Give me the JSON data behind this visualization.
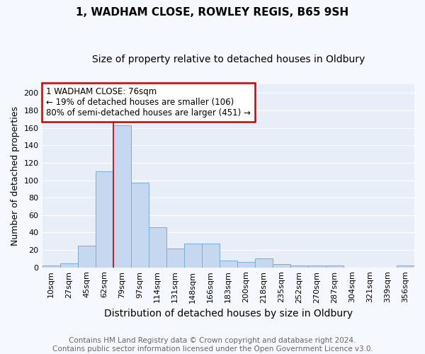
{
  "title1": "1, WADHAM CLOSE, ROWLEY REGIS, B65 9SH",
  "title2": "Size of property relative to detached houses in Oldbury",
  "xlabel": "Distribution of detached houses by size in Oldbury",
  "ylabel": "Number of detached properties",
  "footer": "Contains HM Land Registry data © Crown copyright and database right 2024.\nContains public sector information licensed under the Open Government Licence v3.0.",
  "bar_labels": [
    "10sqm",
    "27sqm",
    "45sqm",
    "62sqm",
    "79sqm",
    "97sqm",
    "114sqm",
    "131sqm",
    "148sqm",
    "166sqm",
    "183sqm",
    "200sqm",
    "218sqm",
    "235sqm",
    "252sqm",
    "270sqm",
    "287sqm",
    "304sqm",
    "321sqm",
    "339sqm",
    "356sqm"
  ],
  "bar_values": [
    2,
    5,
    25,
    110,
    163,
    97,
    46,
    22,
    27,
    27,
    8,
    6,
    10,
    4,
    2,
    2,
    2,
    0,
    0,
    0,
    2
  ],
  "bar_color": "#c5d8f0",
  "bar_edge_color": "#7aadd4",
  "red_line_x": 3.5,
  "annotation_text": "1 WADHAM CLOSE: 76sqm\n← 19% of detached houses are smaller (106)\n80% of semi-detached houses are larger (451) →",
  "annotation_box_color": "#ffffff",
  "annotation_box_edge": "#cc0000",
  "ylim": [
    0,
    210
  ],
  "yticks": [
    0,
    20,
    40,
    60,
    80,
    100,
    120,
    140,
    160,
    180,
    200
  ],
  "fig_bg_color": "#f5f8fe",
  "plot_bg": "#e8eef8",
  "grid_color": "#ffffff",
  "title1_fontsize": 11,
  "title2_fontsize": 10,
  "xlabel_fontsize": 10,
  "ylabel_fontsize": 9,
  "tick_fontsize": 8,
  "footer_fontsize": 7.5
}
